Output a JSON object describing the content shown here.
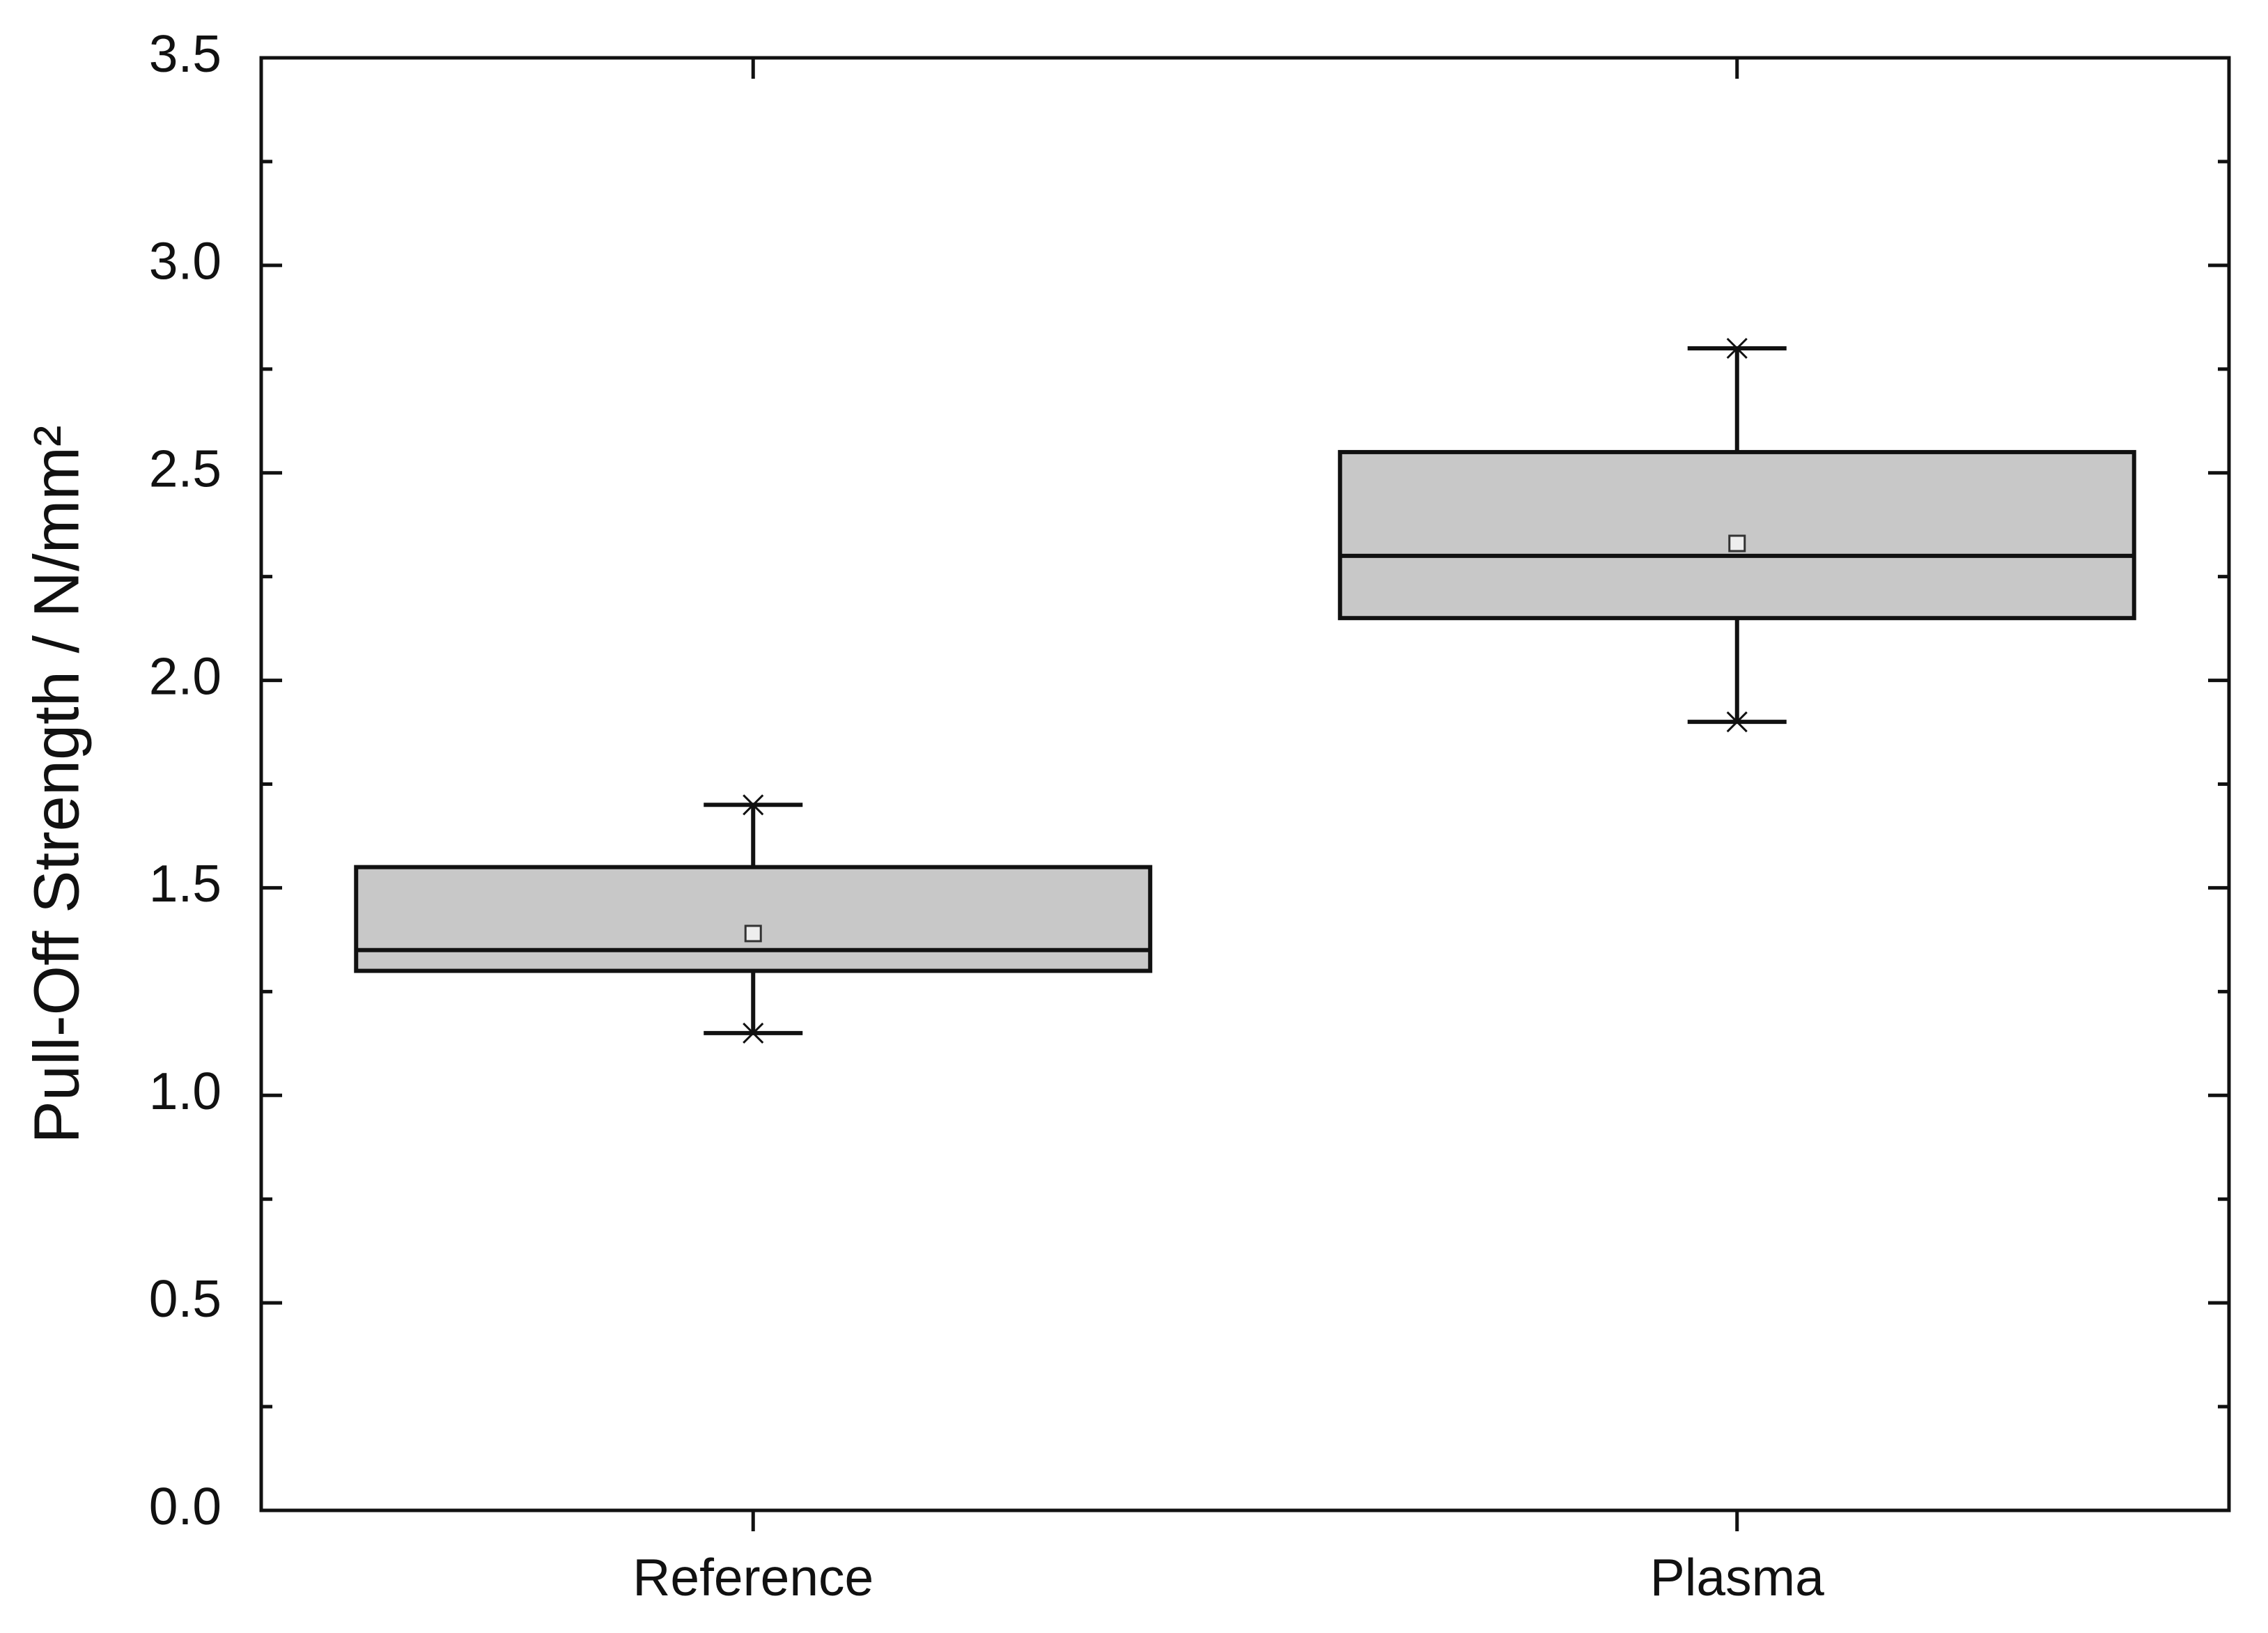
{
  "chart_data": {
    "type": "box",
    "y_label": "Pull-Off Strength / N/mm²",
    "categories": [
      "Reference",
      "Plasma"
    ],
    "boxes": [
      {
        "min": 1.15,
        "q1": 1.3,
        "median": 1.35,
        "q3": 1.55,
        "max": 1.7,
        "mean": 1.39
      },
      {
        "min": 1.9,
        "q1": 2.15,
        "median": 2.3,
        "q3": 2.55,
        "max": 2.8,
        "mean": 2.33
      }
    ],
    "color": "#c8c8c8",
    "ylim": [
      0,
      3.5
    ],
    "yticks": [
      {
        "value": 0,
        "label": "0.0"
      },
      0.5,
      {
        "value": 1,
        "label": "1.0"
      },
      1.5,
      {
        "value": 2,
        "label": "2.0"
      },
      2.5,
      {
        "value": 3,
        "label": "3.0"
      },
      3.5
    ],
    "minor_yticks": [
      0.25,
      0.75,
      1.25,
      1.75,
      2.25,
      2.75,
      3.25
    ]
  }
}
